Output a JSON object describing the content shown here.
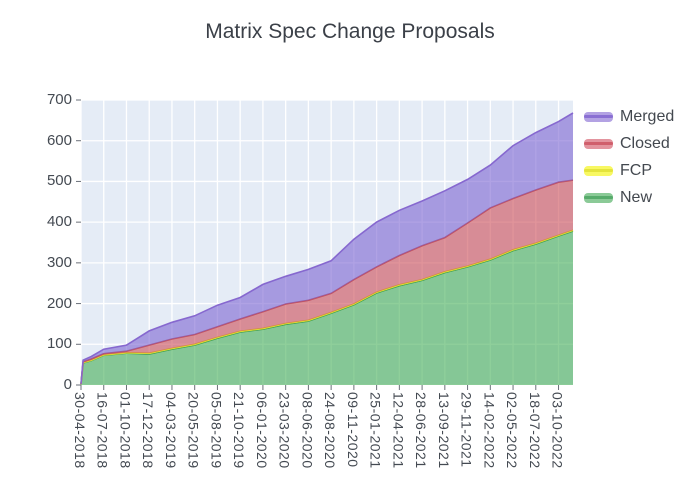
{
  "chart": {
    "title": "Matrix Spec Change Proposals"
  },
  "legend": {
    "position": "right",
    "items": [
      {
        "label": "Merged"
      },
      {
        "label": "Closed"
      },
      {
        "label": "FCP"
      },
      {
        "label": "New"
      }
    ]
  },
  "colors": {
    "plot_bg": "#E5ECF6",
    "grid": "#ffffff",
    "tick_text": "#444a52",
    "title_text": "#3b4048",
    "series": {
      "New": {
        "fill": "rgba(68,175,86,0.60)",
        "line": "#3f9e53",
        "legend_fill": "#8bca97",
        "legend_line": "#57ab6b"
      },
      "FCP": {
        "fill": "rgba(240,240,60,0.80)",
        "line": "#e0e030",
        "legend_fill": "#f8f862",
        "legend_line": "#e4e43c"
      },
      "Closed": {
        "fill": "rgba(205,76,87,0.60)",
        "line": "#c2525e",
        "legend_fill": "#e3949e",
        "legend_line": "#d05f6c"
      },
      "Merged": {
        "fill": "rgba(124,100,210,0.60)",
        "line": "#8668cf",
        "legend_fill": "#b3a2e3",
        "legend_line": "#8a6fd3"
      }
    }
  },
  "chart_data": {
    "type": "area",
    "stacked": true,
    "title": "Matrix Spec Change Proposals",
    "xlabel": "",
    "ylabel": "",
    "ylim": [
      0,
      700
    ],
    "yticks": [
      0,
      100,
      200,
      300,
      400,
      500,
      600,
      700
    ],
    "grid": true,
    "legend_position": "right",
    "series_order_bottom_to_top": [
      "New",
      "FCP",
      "Closed",
      "Merged"
    ],
    "x_axis_day_span": 1666,
    "x_ticks": [
      {
        "label": "30-04-2018",
        "day": 0
      },
      {
        "label": "16-07-2018",
        "day": 77
      },
      {
        "label": "01-10-2018",
        "day": 154
      },
      {
        "label": "17-12-2018",
        "day": 231
      },
      {
        "label": "04-03-2019",
        "day": 308
      },
      {
        "label": "20-05-2019",
        "day": 385
      },
      {
        "label": "05-08-2019",
        "day": 462
      },
      {
        "label": "21-10-2019",
        "day": 539
      },
      {
        "label": "06-01-2020",
        "day": 616
      },
      {
        "label": "23-03-2020",
        "day": 693
      },
      {
        "label": "08-06-2020",
        "day": 770
      },
      {
        "label": "24-08-2020",
        "day": 847
      },
      {
        "label": "09-11-2020",
        "day": 924
      },
      {
        "label": "25-01-2021",
        "day": 1001
      },
      {
        "label": "12-04-2021",
        "day": 1078
      },
      {
        "label": "28-06-2021",
        "day": 1155
      },
      {
        "label": "13-09-2021",
        "day": 1232
      },
      {
        "label": "29-11-2021",
        "day": 1309
      },
      {
        "label": "14-02-2022",
        "day": 1386
      },
      {
        "label": "02-05-2022",
        "day": 1463
      },
      {
        "label": "18-07-2022",
        "day": 1540
      },
      {
        "label": "03-10-2022",
        "day": 1617
      }
    ],
    "samples": [
      {
        "date": "30-04-2018",
        "day": 0,
        "New": 2,
        "FCP": 0,
        "Closed": 0,
        "Merged": 1
      },
      {
        "date": "07-05-2018",
        "day": 7,
        "New": 54,
        "FCP": 1,
        "Closed": 2,
        "Merged": 4
      },
      {
        "date": "04-06-2018",
        "day": 35,
        "New": 60,
        "FCP": 1,
        "Closed": 3,
        "Merged": 6
      },
      {
        "date": "16-07-2018",
        "day": 77,
        "New": 73,
        "FCP": 1,
        "Closed": 3,
        "Merged": 11
      },
      {
        "date": "01-10-2018",
        "day": 154,
        "New": 78,
        "FCP": 1,
        "Closed": 4,
        "Merged": 15
      },
      {
        "date": "17-12-2018",
        "day": 231,
        "New": 76,
        "FCP": 2,
        "Closed": 20,
        "Merged": 35
      },
      {
        "date": "04-03-2019",
        "day": 308,
        "New": 88,
        "FCP": 2,
        "Closed": 23,
        "Merged": 41
      },
      {
        "date": "20-05-2019",
        "day": 385,
        "New": 98,
        "FCP": 2,
        "Closed": 24,
        "Merged": 46
      },
      {
        "date": "05-08-2019",
        "day": 462,
        "New": 115,
        "FCP": 2,
        "Closed": 26,
        "Merged": 53
      },
      {
        "date": "21-10-2019",
        "day": 539,
        "New": 130,
        "FCP": 2,
        "Closed": 30,
        "Merged": 53
      },
      {
        "date": "06-01-2020",
        "day": 616,
        "New": 137,
        "FCP": 2,
        "Closed": 41,
        "Merged": 67
      },
      {
        "date": "23-03-2020",
        "day": 693,
        "New": 149,
        "FCP": 2,
        "Closed": 48,
        "Merged": 68
      },
      {
        "date": "08-06-2020",
        "day": 770,
        "New": 157,
        "FCP": 2,
        "Closed": 49,
        "Merged": 76
      },
      {
        "date": "24-08-2020",
        "day": 847,
        "New": 176,
        "FCP": 2,
        "Closed": 47,
        "Merged": 80
      },
      {
        "date": "09-11-2020",
        "day": 924,
        "New": 197,
        "FCP": 2,
        "Closed": 60,
        "Merged": 99
      },
      {
        "date": "25-01-2021",
        "day": 1001,
        "New": 226,
        "FCP": 2,
        "Closed": 62,
        "Merged": 110
      },
      {
        "date": "12-04-2021",
        "day": 1078,
        "New": 244,
        "FCP": 2,
        "Closed": 72,
        "Merged": 111
      },
      {
        "date": "28-06-2021",
        "day": 1155,
        "New": 257,
        "FCP": 2,
        "Closed": 83,
        "Merged": 110
      },
      {
        "date": "13-09-2021",
        "day": 1232,
        "New": 276,
        "FCP": 2,
        "Closed": 84,
        "Merged": 115
      },
      {
        "date": "29-11-2021",
        "day": 1309,
        "New": 290,
        "FCP": 2,
        "Closed": 106,
        "Merged": 107
      },
      {
        "date": "14-02-2022",
        "day": 1386,
        "New": 307,
        "FCP": 2,
        "Closed": 126,
        "Merged": 105
      },
      {
        "date": "02-05-2022",
        "day": 1463,
        "New": 330,
        "FCP": 2,
        "Closed": 126,
        "Merged": 130
      },
      {
        "date": "18-07-2022",
        "day": 1540,
        "New": 346,
        "FCP": 2,
        "Closed": 131,
        "Merged": 141
      },
      {
        "date": "03-10-2022",
        "day": 1617,
        "New": 366,
        "FCP": 2,
        "Closed": 130,
        "Merged": 149
      },
      {
        "date": "21-11-2022",
        "day": 1666,
        "New": 378,
        "FCP": 2,
        "Closed": 123,
        "Merged": 165
      }
    ]
  }
}
